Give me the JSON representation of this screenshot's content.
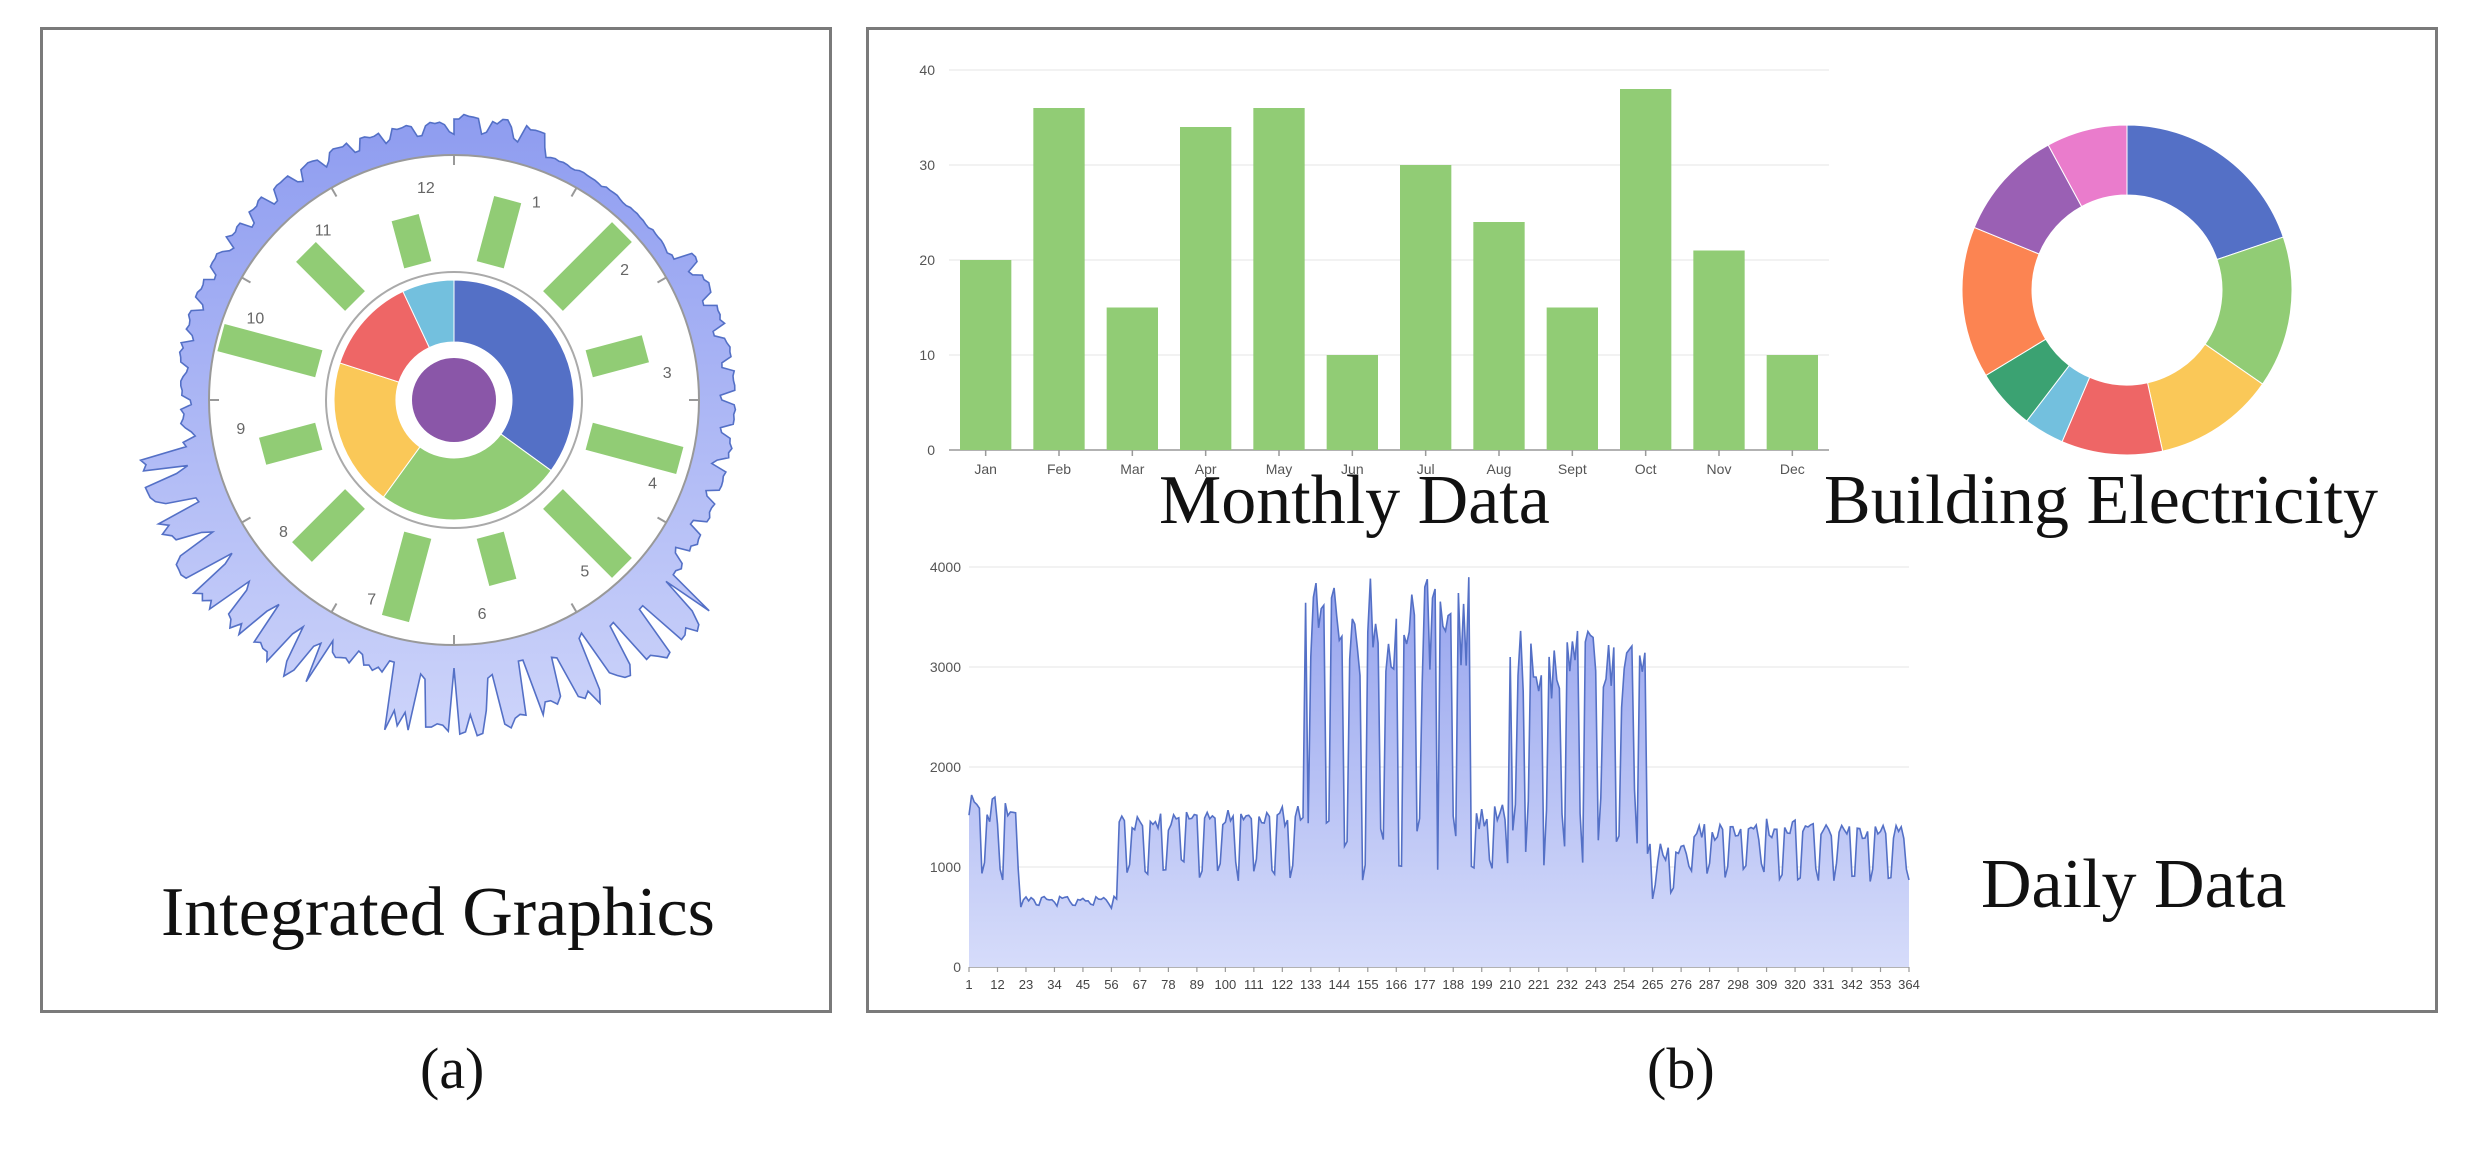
{
  "captions": {
    "panel_a_title": "Integrated Graphics",
    "monthly_title": "Monthly Data",
    "building_title": "Building Electricity",
    "daily_title": "Daily Data",
    "label_a": "(a)",
    "label_b": "(b)"
  },
  "colors": {
    "bar_green": "#91cc75",
    "blue": "#5470c6",
    "area_fill_top": "#95a3ee",
    "area_fill_bottom": "#d6dcfa",
    "border": "#7a7a7a"
  },
  "chart_data": [
    {
      "type": "bar",
      "title": "Monthly Data",
      "categories": [
        "Jan",
        "Feb",
        "Mar",
        "Apr",
        "May",
        "Jun",
        "Jul",
        "Aug",
        "Sept",
        "Oct",
        "Nov",
        "Dec"
      ],
      "values": [
        20,
        36,
        15,
        34,
        36,
        10,
        30,
        24,
        15,
        38,
        21,
        10
      ],
      "ylim": [
        0,
        40
      ],
      "yticks": [
        0,
        10,
        20,
        30,
        40
      ],
      "xlabel": "",
      "ylabel": "",
      "grid": true
    },
    {
      "type": "pie",
      "title": "Building Electricity",
      "donut": true,
      "values": [
        20,
        15,
        12,
        10,
        4,
        6,
        15,
        11,
        8
      ],
      "colors": [
        "#5470c6",
        "#91cc75",
        "#fac858",
        "#ee6666",
        "#73c0de",
        "#3ba272",
        "#fc8452",
        "#9a60b4",
        "#ea7ccc"
      ]
    },
    {
      "type": "area",
      "title": "Daily Data",
      "ylim": [
        0,
        4000
      ],
      "yticks": [
        0,
        1000,
        2000,
        3000,
        4000
      ],
      "xticks": [
        1,
        12,
        23,
        34,
        45,
        56,
        67,
        78,
        89,
        100,
        111,
        122,
        133,
        144,
        155,
        166,
        177,
        188,
        199,
        210,
        221,
        232,
        243,
        254,
        265,
        276,
        287,
        298,
        309,
        320,
        331,
        342,
        353,
        364
      ],
      "x_range": [
        1,
        364
      ],
      "segments": [
        {
          "from": 1,
          "to": 20,
          "base": 1250,
          "amp": 380,
          "noise": 120
        },
        {
          "from": 21,
          "to": 58,
          "base": 650,
          "amp": 40,
          "noise": 30
        },
        {
          "from": 59,
          "to": 130,
          "base": 1230,
          "amp": 320,
          "noise": 80
        },
        {
          "from": 131,
          "to": 195,
          "base": 2300,
          "amp": 1300,
          "noise": 350
        },
        {
          "from": 196,
          "to": 212,
          "base": 1250,
          "amp": 300,
          "noise": 100
        },
        {
          "from": 213,
          "to": 262,
          "base": 2200,
          "amp": 1050,
          "noise": 350
        },
        {
          "from": 263,
          "to": 278,
          "base": 950,
          "amp": 250,
          "noise": 80
        },
        {
          "from": 279,
          "to": 364,
          "base": 1150,
          "amp": 260,
          "noise": 80
        }
      ],
      "peaks": [
        [
          133,
          3100
        ],
        [
          155,
          3350
        ],
        [
          177,
          3800
        ],
        [
          181,
          3780
        ],
        [
          210,
          3100
        ],
        [
          236,
          3360
        ],
        [
          248,
          3220
        ],
        [
          2,
          1720
        ]
      ]
    },
    {
      "type": "radial",
      "title": "Integrated Graphics",
      "clock_labels": [
        "12",
        "1",
        "2",
        "3",
        "4",
        "5",
        "6",
        "7",
        "8",
        "9",
        "10",
        "11"
      ],
      "radial_bars": [
        20,
        36,
        15,
        34,
        36,
        10,
        30,
        24,
        15,
        38,
        21,
        10
      ],
      "ring_values": [
        35,
        25,
        20,
        13,
        7
      ],
      "ring_colors": [
        "#5470c6",
        "#91cc75",
        "#fac858",
        "#ee6666",
        "#73c0de"
      ],
      "center_color": "#8a56a8"
    }
  ]
}
